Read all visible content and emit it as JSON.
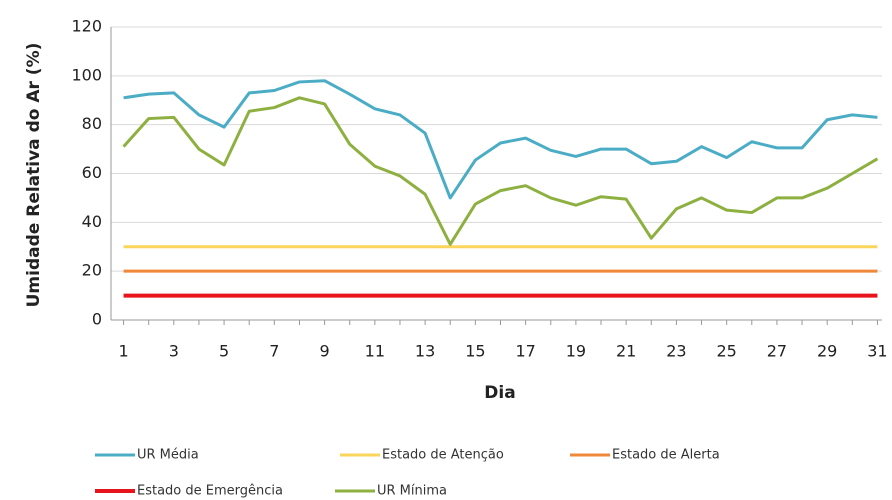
{
  "chart_data": {
    "type": "line",
    "x_label": "Dia",
    "y_label": "Umidade Relativa do Ar (%)",
    "x": [
      1,
      2,
      3,
      4,
      5,
      6,
      7,
      8,
      9,
      10,
      11,
      12,
      13,
      14,
      15,
      16,
      17,
      18,
      19,
      20,
      21,
      22,
      23,
      24,
      25,
      26,
      27,
      28,
      29,
      30,
      31
    ],
    "xlim": [
      0.5,
      31.5
    ],
    "xticks": [
      1,
      3,
      5,
      7,
      9,
      11,
      13,
      15,
      17,
      19,
      21,
      23,
      25,
      27,
      29,
      31
    ],
    "ylim": [
      0,
      120
    ],
    "yticks": [
      0,
      20,
      40,
      60,
      80,
      100,
      120
    ],
    "grid": true,
    "series": [
      {
        "name": "UR Média",
        "color": "#4bacc6",
        "values": [
          91,
          92.5,
          93,
          84,
          79,
          93,
          94,
          97.5,
          98,
          92.5,
          86.5,
          84,
          76.5,
          50,
          65.5,
          72.5,
          74.5,
          69.5,
          67,
          70,
          70,
          64,
          65,
          71,
          66.5,
          73,
          70.5,
          70.5,
          82,
          84,
          83
        ]
      },
      {
        "name": "Estado de Atenção",
        "color": "#fad55c",
        "values": [
          30,
          30,
          30,
          30,
          30,
          30,
          30,
          30,
          30,
          30,
          30,
          30,
          30,
          30,
          30,
          30,
          30,
          30,
          30,
          30,
          30,
          30,
          30,
          30,
          30,
          30,
          30,
          30,
          30,
          30,
          30
        ]
      },
      {
        "name": "Estado de Alerta",
        "color": "#f0883a",
        "values": [
          20,
          20,
          20,
          20,
          20,
          20,
          20,
          20,
          20,
          20,
          20,
          20,
          20,
          20,
          20,
          20,
          20,
          20,
          20,
          20,
          20,
          20,
          20,
          20,
          20,
          20,
          20,
          20,
          20,
          20,
          20
        ]
      },
      {
        "name": "Estado de Emergência",
        "color": "#e8141c",
        "values": [
          10,
          10,
          10,
          10,
          10,
          10,
          10,
          10,
          10,
          10,
          10,
          10,
          10,
          10,
          10,
          10,
          10,
          10,
          10,
          10,
          10,
          10,
          10,
          10,
          10,
          10,
          10,
          10,
          10,
          10,
          10
        ]
      },
      {
        "name": "UR Mínima",
        "color": "#8db040",
        "values": [
          71,
          82.5,
          83,
          70,
          63.5,
          85.5,
          87,
          91,
          88.5,
          72,
          63,
          59,
          51.5,
          31,
          47.5,
          53,
          55,
          50,
          47,
          50.5,
          49.5,
          33.5,
          45.5,
          50,
          45,
          44,
          50,
          50,
          54,
          60,
          66
        ]
      }
    ]
  }
}
